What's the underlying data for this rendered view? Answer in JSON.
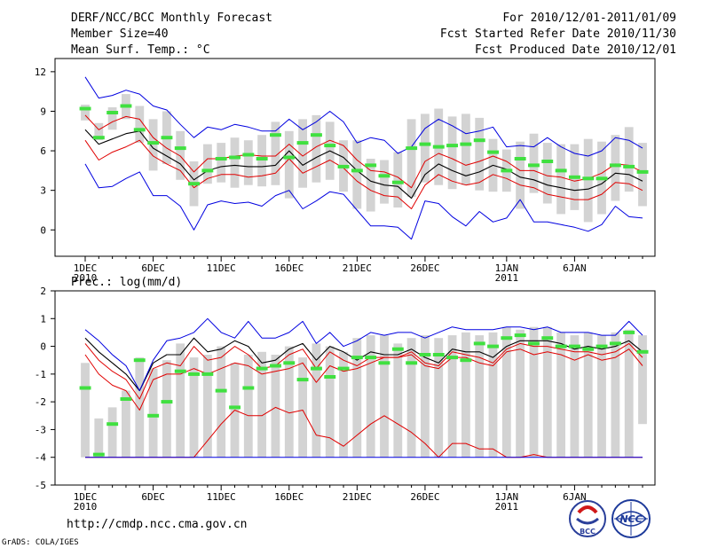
{
  "header": {
    "title": "DERF/NCC/BCC Monthly Forecast",
    "member_size": "Member Size=40",
    "for_range": "For 2010/12/01-2011/01/09",
    "fcst_started": "Fcst Started Refer Date 2010/11/30",
    "fcst_produced": "Fcst Produced Date 2010/12/01"
  },
  "footer": {
    "url": "http://cmdp.ncc.cma.gov.cn",
    "grads_credit": "GrADS: COLA/IGES",
    "logo_bcc_text": "BCC",
    "logo_ncc_text": "NCC"
  },
  "colors": {
    "spread_box": "#d3d3d3",
    "member_mark": "#40e040",
    "ensemble_mean": "#000000",
    "band_inner": "#e00000",
    "band_outer": "#0000e0"
  },
  "chart_data": [
    {
      "type": "line",
      "title": "Mean Surf. Temp.: °C",
      "xlabel": "",
      "ylabel": "",
      "x_days": 40,
      "x_ticks": [
        {
          "day": 1,
          "label": "1DEC",
          "sub": "2010"
        },
        {
          "day": 6,
          "label": "6DEC",
          "sub": ""
        },
        {
          "day": 11,
          "label": "11DEC",
          "sub": ""
        },
        {
          "day": 16,
          "label": "16DEC",
          "sub": ""
        },
        {
          "day": 21,
          "label": "21DEC",
          "sub": ""
        },
        {
          "day": 26,
          "label": "26DEC",
          "sub": ""
        },
        {
          "day": 32,
          "label": "1JAN",
          "sub": "2011"
        },
        {
          "day": 37,
          "label": "6JAN",
          "sub": ""
        }
      ],
      "ylim": [
        -2,
        13
      ],
      "y_ticks": [
        0,
        3,
        6,
        9,
        12
      ],
      "series": [
        {
          "name": "ensemble-mean",
          "values": [
            7.6,
            6.5,
            6.9,
            7.3,
            7.5,
            6.2,
            5.6,
            5.0,
            3.8,
            4.5,
            4.8,
            4.9,
            4.8,
            4.8,
            4.9,
            6.0,
            4.9,
            5.5,
            6.0,
            5.5,
            4.5,
            3.7,
            3.4,
            3.3,
            2.4,
            4.2,
            5.0,
            4.5,
            4.1,
            4.4,
            4.9,
            4.6,
            4.0,
            3.8,
            3.4,
            3.2,
            3.0,
            3.1,
            3.5,
            4.3,
            4.2,
            3.7
          ]
        },
        {
          "name": "upper-inner",
          "values": [
            8.7,
            7.6,
            8.2,
            8.6,
            8.4,
            7.0,
            6.2,
            5.6,
            4.4,
            5.4,
            5.4,
            5.6,
            5.7,
            5.6,
            5.6,
            6.5,
            5.6,
            6.3,
            6.8,
            6.4,
            5.3,
            4.5,
            4.4,
            4.0,
            3.2,
            5.2,
            5.8,
            5.4,
            4.9,
            5.2,
            5.6,
            5.2,
            4.5,
            4.5,
            4.1,
            4.0,
            3.7,
            3.9,
            4.3,
            5.0,
            4.9,
            4.4
          ]
        },
        {
          "name": "lower-inner",
          "values": [
            6.8,
            5.3,
            5.9,
            6.3,
            6.8,
            5.6,
            5.0,
            4.5,
            3.2,
            3.9,
            4.2,
            4.2,
            4.0,
            4.1,
            4.3,
            5.4,
            4.3,
            4.8,
            5.3,
            4.7,
            3.7,
            3.0,
            2.6,
            2.5,
            1.6,
            3.4,
            4.2,
            3.7,
            3.4,
            3.6,
            4.2,
            3.9,
            3.4,
            3.2,
            2.7,
            2.5,
            2.3,
            2.3,
            2.7,
            3.6,
            3.5,
            3.0
          ]
        },
        {
          "name": "upper-outer",
          "values": [
            11.6,
            10.0,
            10.2,
            10.6,
            10.3,
            9.4,
            9.1,
            8.0,
            7.0,
            7.8,
            7.6,
            8.0,
            7.8,
            7.5,
            7.5,
            8.4,
            7.6,
            8.2,
            9.0,
            8.2,
            6.6,
            7.0,
            6.8,
            5.8,
            6.3,
            7.7,
            8.4,
            7.9,
            7.3,
            7.5,
            7.8,
            6.3,
            6.4,
            6.3,
            7.0,
            6.3,
            5.8,
            5.6,
            6.0,
            7.0,
            6.8,
            6.2
          ]
        },
        {
          "name": "lower-outer",
          "values": [
            5.0,
            3.2,
            3.3,
            3.9,
            4.4,
            2.6,
            2.6,
            1.8,
            0.0,
            1.9,
            2.2,
            2.0,
            2.1,
            1.8,
            2.6,
            3.0,
            1.6,
            2.2,
            2.9,
            2.7,
            1.5,
            0.3,
            0.3,
            0.2,
            -0.7,
            2.2,
            2.0,
            1.0,
            0.3,
            1.4,
            0.6,
            0.9,
            2.3,
            0.6,
            0.6,
            0.4,
            0.2,
            -0.1,
            0.4,
            1.8,
            1.0,
            0.9
          ]
        },
        {
          "name": "member-mark",
          "values": [
            9.2,
            7.0,
            8.9,
            9.4,
            7.6,
            6.6,
            7.0,
            6.2,
            3.5,
            4.5,
            5.4,
            5.5,
            5.7,
            5.4,
            7.2,
            5.5,
            6.6,
            7.2,
            6.4,
            4.8,
            4.5,
            4.9,
            4.1,
            3.6,
            6.2,
            6.5,
            6.3,
            6.4,
            6.5,
            6.8,
            5.9,
            4.5,
            5.4,
            4.9,
            5.2,
            4.5,
            4.0,
            3.9,
            3.9,
            4.9,
            4.8,
            4.4
          ]
        }
      ],
      "spread_boxes": [
        [
          8.3,
          9.5
        ],
        [
          6.8,
          8.1
        ],
        [
          7.6,
          9.3
        ],
        [
          8.4,
          10.3
        ],
        [
          6.6,
          9.4
        ],
        [
          4.5,
          8.4
        ],
        [
          5.0,
          9.0
        ],
        [
          3.8,
          7.5
        ],
        [
          1.8,
          5.2
        ],
        [
          3.5,
          6.5
        ],
        [
          3.6,
          6.6
        ],
        [
          3.2,
          7.0
        ],
        [
          3.4,
          6.8
        ],
        [
          3.3,
          7.2
        ],
        [
          3.4,
          8.2
        ],
        [
          2.4,
          7.5
        ],
        [
          3.2,
          8.4
        ],
        [
          3.6,
          8.7
        ],
        [
          3.8,
          8.2
        ],
        [
          2.9,
          6.8
        ],
        [
          1.6,
          6.8
        ],
        [
          1.4,
          5.4
        ],
        [
          2.0,
          5.3
        ],
        [
          1.7,
          5.9
        ],
        [
          2.5,
          8.4
        ],
        [
          3.6,
          8.8
        ],
        [
          3.4,
          9.2
        ],
        [
          3.1,
          8.6
        ],
        [
          3.4,
          8.8
        ],
        [
          3.0,
          8.5
        ],
        [
          2.9,
          6.9
        ],
        [
          2.9,
          6.1
        ],
        [
          1.6,
          6.7
        ],
        [
          2.8,
          7.3
        ],
        [
          2.0,
          6.6
        ],
        [
          1.2,
          6.5
        ],
        [
          1.5,
          6.5
        ],
        [
          0.6,
          6.9
        ],
        [
          1.2,
          6.7
        ],
        [
          2.2,
          7.2
        ],
        [
          2.9,
          7.8
        ],
        [
          1.8,
          6.6
        ]
      ]
    },
    {
      "type": "line",
      "title": "Prec.: log(mm/d)",
      "xlabel": "",
      "ylabel": "",
      "x_days": 40,
      "x_ticks": [
        {
          "day": 1,
          "label": "1DEC",
          "sub": "2010"
        },
        {
          "day": 6,
          "label": "6DEC",
          "sub": ""
        },
        {
          "day": 11,
          "label": "11DEC",
          "sub": ""
        },
        {
          "day": 16,
          "label": "16DEC",
          "sub": ""
        },
        {
          "day": 21,
          "label": "21DEC",
          "sub": ""
        },
        {
          "day": 26,
          "label": "26DEC",
          "sub": ""
        },
        {
          "day": 32,
          "label": "1JAN",
          "sub": "2011"
        },
        {
          "day": 37,
          "label": "6JAN",
          "sub": ""
        }
      ],
      "ylim": [
        -5,
        2
      ],
      "y_ticks": [
        -5,
        -4,
        -3,
        -2,
        -1,
        0,
        1,
        2
      ],
      "series": [
        {
          "name": "ensemble-mean",
          "values": [
            0.3,
            -0.2,
            -0.6,
            -1.0,
            -1.6,
            -0.6,
            -0.3,
            -0.3,
            0.3,
            -0.2,
            -0.1,
            0.2,
            0.0,
            -0.6,
            -0.5,
            -0.1,
            0.1,
            -0.5,
            0.0,
            -0.2,
            -0.5,
            -0.2,
            -0.3,
            -0.3,
            -0.1,
            -0.4,
            -0.6,
            -0.1,
            -0.2,
            -0.2,
            -0.4,
            0.0,
            0.2,
            0.2,
            0.2,
            0.1,
            -0.1,
            0.0,
            -0.1,
            0.0,
            0.2,
            -0.2
          ]
        },
        {
          "name": "upper-inner",
          "values": [
            0.1,
            -0.5,
            -0.9,
            -1.2,
            -1.9,
            -0.8,
            -0.6,
            -0.7,
            0.0,
            -0.5,
            -0.4,
            0.0,
            -0.3,
            -0.8,
            -0.7,
            -0.3,
            -0.1,
            -0.8,
            -0.2,
            -0.5,
            -0.7,
            -0.4,
            -0.4,
            -0.4,
            -0.2,
            -0.6,
            -0.7,
            -0.2,
            -0.3,
            -0.4,
            -0.6,
            -0.1,
            0.1,
            0.0,
            0.0,
            -0.1,
            -0.2,
            -0.2,
            -0.3,
            -0.2,
            0.1,
            -0.4
          ]
        },
        {
          "name": "lower-inner",
          "values": [
            -0.3,
            -1.0,
            -1.4,
            -1.6,
            -2.3,
            -1.2,
            -1.0,
            -1.0,
            -0.8,
            -1.0,
            -0.8,
            -0.6,
            -0.7,
            -1.0,
            -0.9,
            -0.8,
            -0.6,
            -1.3,
            -0.7,
            -0.9,
            -0.8,
            -0.6,
            -0.4,
            -0.4,
            -0.3,
            -0.7,
            -0.8,
            -0.4,
            -0.4,
            -0.6,
            -0.7,
            -0.2,
            -0.1,
            -0.3,
            -0.2,
            -0.3,
            -0.5,
            -0.3,
            -0.5,
            -0.4,
            -0.1,
            -0.7
          ]
        },
        {
          "name": "lower-extreme",
          "values": [
            -4.0,
            -4.0,
            -4.0,
            -4.0,
            -4.0,
            -4.0,
            -4.0,
            -4.0,
            -4.0,
            -3.4,
            -2.8,
            -2.3,
            -2.5,
            -2.5,
            -2.2,
            -2.4,
            -2.3,
            -3.2,
            -3.3,
            -3.6,
            -3.2,
            -2.8,
            -2.5,
            -2.8,
            -3.1,
            -3.5,
            -4.0,
            -3.5,
            -3.5,
            -3.7,
            -3.7,
            -4.0,
            -4.0,
            -3.9,
            -4.0,
            -4.0,
            -4.0,
            -4.0,
            -4.0,
            -4.0,
            -4.0,
            -4.0
          ]
        },
        {
          "name": "upper-outer",
          "values": [
            0.6,
            0.2,
            -0.3,
            -0.7,
            -1.6,
            -0.5,
            0.2,
            0.3,
            0.5,
            1.0,
            0.5,
            0.3,
            0.9,
            0.3,
            0.3,
            0.5,
            0.9,
            0.1,
            0.5,
            0.0,
            0.2,
            0.5,
            0.4,
            0.5,
            0.5,
            0.3,
            0.5,
            0.7,
            0.6,
            0.6,
            0.6,
            0.7,
            0.7,
            0.6,
            0.7,
            0.5,
            0.5,
            0.5,
            0.4,
            0.4,
            0.9,
            0.4
          ]
        },
        {
          "name": "member-mark",
          "values": [
            -1.5,
            -3.9,
            -2.8,
            -1.9,
            -0.5,
            -2.5,
            -2.0,
            -0.9,
            -1.0,
            -1.0,
            -1.6,
            -2.2,
            -1.5,
            -0.8,
            -0.7,
            -0.6,
            -1.2,
            -0.8,
            -1.1,
            -0.8,
            -0.4,
            -0.4,
            -0.6,
            -0.1,
            -0.6,
            -0.3,
            -0.3,
            -0.4,
            -0.5,
            0.1,
            0.0,
            0.3,
            0.4,
            0.1,
            0.3,
            0.0,
            0.0,
            -0.1,
            0.0,
            0.1,
            0.5,
            -0.2
          ]
        },
        {
          "name": "lower-outer",
          "values": [
            -4.0,
            -4.0,
            -4.0,
            -4.0,
            -4.0,
            -4.0,
            -4.0,
            -4.0,
            -4.0,
            -4.0,
            -4.0,
            -4.0,
            -4.0,
            -4.0,
            -4.0,
            -4.0,
            -4.0,
            -4.0,
            -4.0,
            -4.0,
            -4.0,
            -4.0,
            -4.0,
            -4.0,
            -4.0,
            -4.0,
            -4.0,
            -4.0,
            -4.0,
            -4.0,
            -4.0,
            -4.0,
            -4.0,
            -4.0,
            -4.0,
            -4.0,
            -4.0,
            -4.0,
            -4.0,
            -4.0,
            -4.0,
            -4.0
          ]
        }
      ],
      "spread_boxes": [
        [
          -4.0,
          -0.6
        ],
        [
          -4.0,
          -2.6
        ],
        [
          -4.0,
          -2.2
        ],
        [
          -4.0,
          -1.6
        ],
        [
          -4.0,
          -0.4
        ],
        [
          -4.0,
          -0.8
        ],
        [
          -4.0,
          -0.5
        ],
        [
          -4.0,
          0.1
        ],
        [
          -4.0,
          -0.4
        ],
        [
          -4.0,
          -0.3
        ],
        [
          -4.0,
          0.0
        ],
        [
          -4.0,
          -0.6
        ],
        [
          -4.0,
          -0.3
        ],
        [
          -4.0,
          -0.2
        ],
        [
          -4.0,
          -0.3
        ],
        [
          -4.0,
          0.0
        ],
        [
          -4.0,
          -0.4
        ],
        [
          -4.0,
          0.1
        ],
        [
          -4.0,
          0.0
        ],
        [
          -4.0,
          -0.2
        ],
        [
          -4.0,
          0.3
        ],
        [
          -4.0,
          0.4
        ],
        [
          -4.0,
          0.4
        ],
        [
          -4.0,
          0.1
        ],
        [
          -4.0,
          0.3
        ],
        [
          -4.0,
          0.4
        ],
        [
          -4.0,
          0.3
        ],
        [
          -4.0,
          0.4
        ],
        [
          -4.0,
          0.5
        ],
        [
          -4.0,
          0.4
        ],
        [
          -4.0,
          0.5
        ],
        [
          -4.0,
          0.7
        ],
        [
          -4.0,
          0.6
        ],
        [
          -4.0,
          0.7
        ],
        [
          -4.0,
          0.7
        ],
        [
          -4.0,
          0.5
        ],
        [
          -4.0,
          0.4
        ],
        [
          -4.0,
          0.5
        ],
        [
          -4.0,
          0.4
        ],
        [
          -4.0,
          0.5
        ],
        [
          -4.0,
          0.6
        ],
        [
          -2.8,
          0.4
        ]
      ]
    }
  ]
}
